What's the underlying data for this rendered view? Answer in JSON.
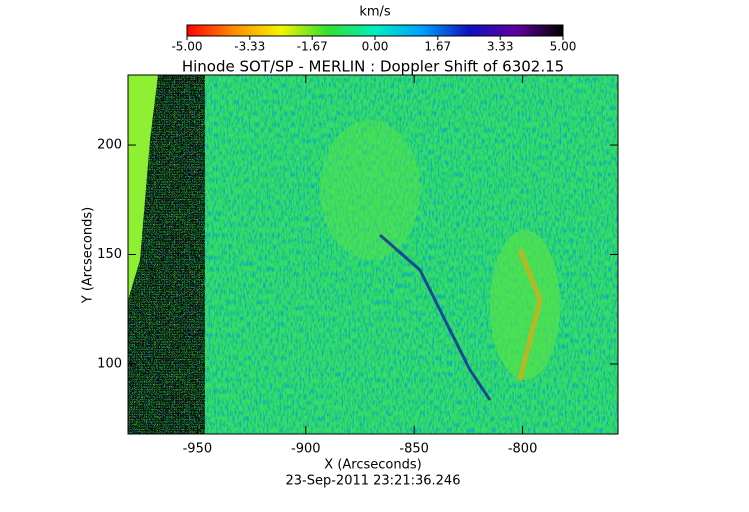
{
  "chart_data": {
    "type": "image",
    "title": "Hinode SOT/SP - MERLIN : Doppler Shift of 6302.15",
    "x_label": "X (Arcseconds)",
    "y_label": "Y (Arcseconds)",
    "date": "23-Sep-2011 23:21:36.246",
    "xlim": [
      -982,
      -756
    ],
    "ylim": [
      68,
      232
    ],
    "xticks": [
      -950,
      -900,
      -850,
      -800
    ],
    "yticks": [
      100,
      150,
      200
    ],
    "colorbar": {
      "label": "km/s",
      "lim": [
        -5,
        5
      ],
      "ticks": [
        {
          "value": -5,
          "label": "-5.00"
        },
        -3.33,
        -1.67,
        {
          "value": 0,
          "label": "0.00"
        },
        1.67,
        3.33,
        {
          "value": 5,
          "label": "5.00"
        }
      ],
      "colors": [
        "#ff0000",
        "#ff8c00",
        "#f5f500",
        "#30e030",
        "#00f0c0",
        "#00a0ff",
        "#1010c0",
        "#6000a0",
        "#000000"
      ]
    }
  }
}
